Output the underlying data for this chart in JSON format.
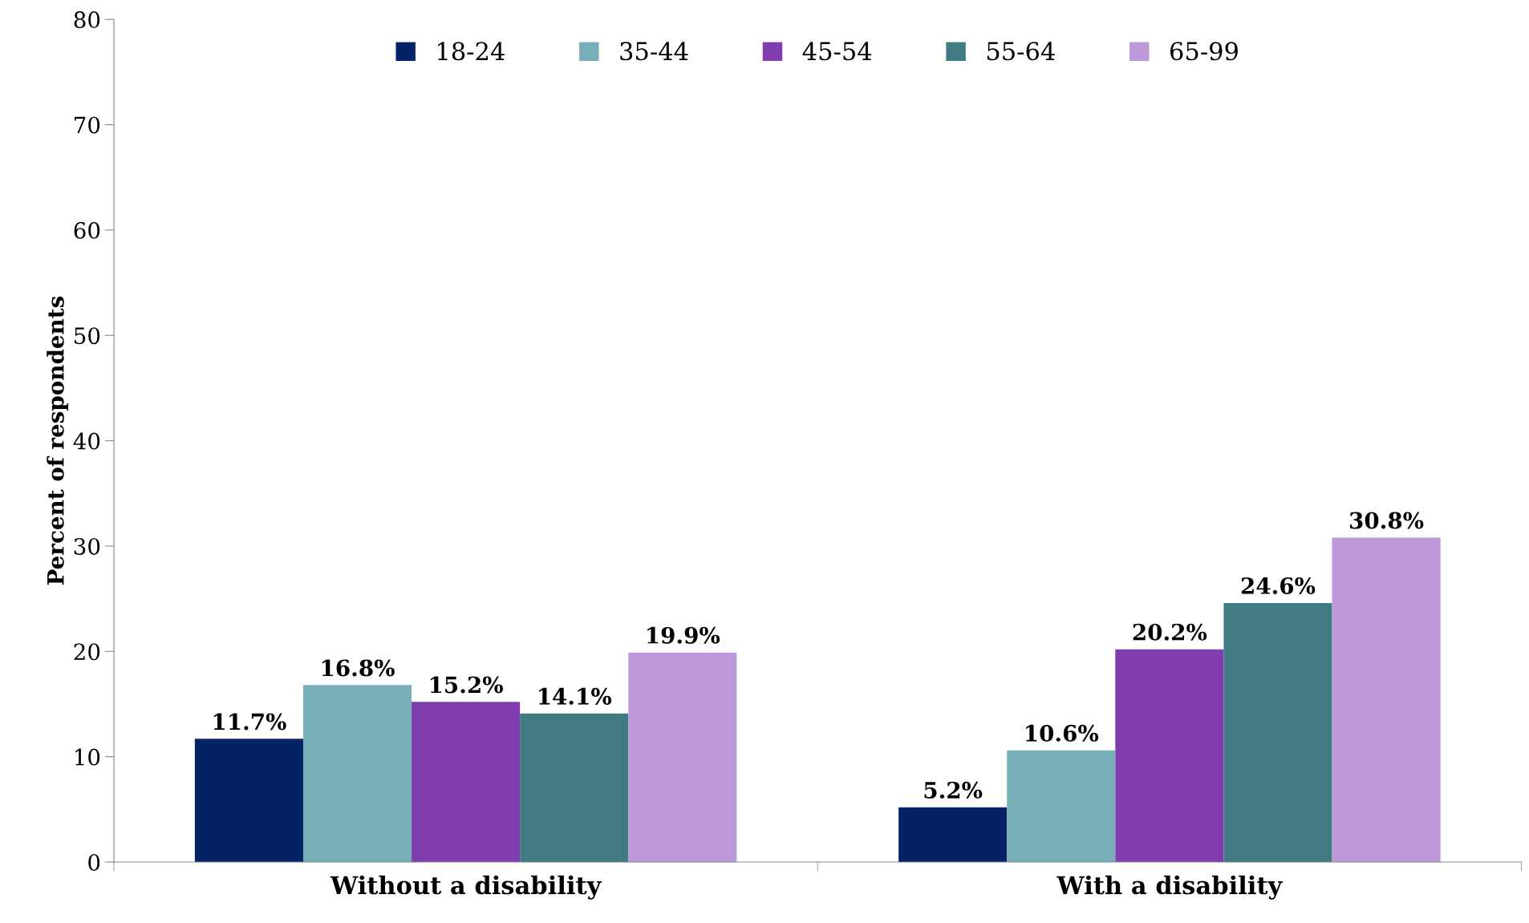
{
  "chart_data": {
    "type": "bar",
    "ylabel": "Percent of respondents",
    "categories": [
      "Without a disability",
      "With a disability"
    ],
    "series": [
      {
        "name": "18-24",
        "color": "#042366",
        "values": [
          11.7,
          5.2
        ],
        "value_labels": [
          "11.7%",
          "5.2%"
        ]
      },
      {
        "name": "35-44",
        "color": "#76afb8",
        "values": [
          16.8,
          10.6
        ],
        "value_labels": [
          "16.8%",
          "10.6%"
        ]
      },
      {
        "name": "45-54",
        "color": "#803db0",
        "values": [
          15.2,
          20.2
        ],
        "value_labels": [
          "15.2%",
          "20.2%"
        ]
      },
      {
        "name": "55-64",
        "color": "#407a83",
        "values": [
          14.1,
          24.6
        ],
        "value_labels": [
          "14.1%",
          "24.6%"
        ]
      },
      {
        "name": "65-99",
        "color": "#be99da",
        "values": [
          19.9,
          30.8
        ],
        "value_labels": [
          "19.9%",
          "30.8%"
        ]
      }
    ],
    "ylim": [
      0,
      80
    ],
    "yticks": [
      0,
      10,
      20,
      30,
      40,
      50,
      60,
      70,
      80
    ],
    "grid": false,
    "legend": "top"
  }
}
